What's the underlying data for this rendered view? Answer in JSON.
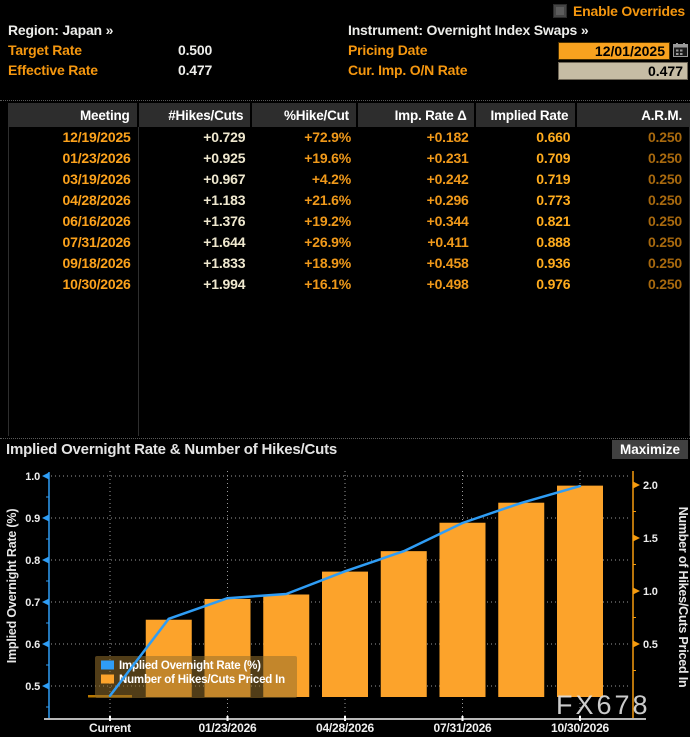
{
  "header": {
    "enable_overrides": {
      "label": "Enable Overrides",
      "checked": false
    },
    "region": {
      "label": "Region:",
      "value": "Japan »"
    },
    "instrument": {
      "label": "Instrument:",
      "value": "Overnight Index Swaps »"
    },
    "target_rate": {
      "label": "Target Rate",
      "value": "0.500"
    },
    "effective_rate": {
      "label": "Effective Rate",
      "value": "0.477"
    },
    "pricing_date": {
      "label": "Pricing Date",
      "value": "12/01/2025"
    },
    "cur_imp_on_rate": {
      "label": "Cur. Imp. O/N Rate",
      "value": "0.477"
    }
  },
  "table": {
    "columns": [
      "Meeting",
      "#Hikes/Cuts",
      "%Hike/Cut",
      "Imp. Rate Δ",
      "Implied Rate",
      "A.R.M."
    ],
    "rows": [
      [
        "12/19/2025",
        "+0.729",
        "+72.9%",
        "+0.182",
        "0.660",
        "0.250"
      ],
      [
        "01/23/2026",
        "+0.925",
        "+19.6%",
        "+0.231",
        "0.709",
        "0.250"
      ],
      [
        "03/19/2026",
        "+0.967",
        "+4.2%",
        "+0.242",
        "0.719",
        "0.250"
      ],
      [
        "04/28/2026",
        "+1.183",
        "+21.6%",
        "+0.296",
        "0.773",
        "0.250"
      ],
      [
        "06/16/2026",
        "+1.376",
        "+19.2%",
        "+0.344",
        "0.821",
        "0.250"
      ],
      [
        "07/31/2026",
        "+1.644",
        "+26.9%",
        "+0.411",
        "0.888",
        "0.250"
      ],
      [
        "09/18/2026",
        "+1.833",
        "+18.9%",
        "+0.458",
        "0.936",
        "0.250"
      ],
      [
        "10/30/2026",
        "+1.994",
        "+16.1%",
        "+0.498",
        "0.976",
        "0.250"
      ]
    ]
  },
  "chart": {
    "title": "Implied Overnight Rate & Number of Hikes/Cuts",
    "maximize_label": "Maximize",
    "watermark": "FX678"
  },
  "chart_data": {
    "type": "bar+line",
    "categories": [
      "Current",
      "12/19/2025",
      "01/23/2026",
      "03/19/2026",
      "04/28/2026",
      "06/16/2026",
      "07/31/2026",
      "09/18/2026",
      "10/30/2026"
    ],
    "series": [
      {
        "name": "Implied Overnight Rate (%)",
        "type": "line",
        "axis": "left",
        "values": [
          0.477,
          0.66,
          0.709,
          0.719,
          0.773,
          0.821,
          0.888,
          0.936,
          0.976
        ]
      },
      {
        "name": "Number of Hikes/Cuts Priced In",
        "type": "bar",
        "axis": "right",
        "values": [
          0,
          0.729,
          0.925,
          0.967,
          1.183,
          1.376,
          1.644,
          1.833,
          1.994
        ]
      }
    ],
    "left_axis": {
      "label": "Implied Overnight Rate (%)",
      "ticks": [
        1.0,
        0.9,
        0.8,
        0.7,
        0.6,
        0.5
      ],
      "range": [
        0.425,
        1.01
      ]
    },
    "right_axis": {
      "label": "Number of Hikes/Cuts Priced In",
      "ticks": [
        2.0,
        1.5,
        1.0,
        0.5
      ],
      "range": [
        0,
        2.0
      ]
    },
    "x_tick_labels": [
      "Current",
      "01/23/2026",
      "04/28/2026",
      "07/31/2026",
      "10/30/2026"
    ],
    "grid": "dotted",
    "legend_position": "bottom-left-inset"
  },
  "colors": {
    "amber_label": "#F5970F",
    "white_text": "#EDEDEA",
    "date_orange": "#FCA21C",
    "cream_value": "#EFE8CF",
    "pct_orange": "#F0991A",
    "implied_orange": "#FFAC1E",
    "arm_dim_orange": "#A8690E",
    "table_header_bg": "#2D2D2D",
    "input_date_bg": "#F8A21F",
    "input_rate_bg": "#C6BCA4",
    "bar_orange": "#FCA32B",
    "line_blue": "#2F9DF5",
    "axis_orange": "#F59B0E",
    "current_marker": "#B87700",
    "grid_dot": "#9A9A9A",
    "x_axis_line": "#B8B8B8",
    "tick_label": "#ECECEC",
    "legend_bg": "rgba(148,111,44,0.55)",
    "watermark_gray": "#DCDCDC",
    "maximize_bg": "#404040"
  }
}
